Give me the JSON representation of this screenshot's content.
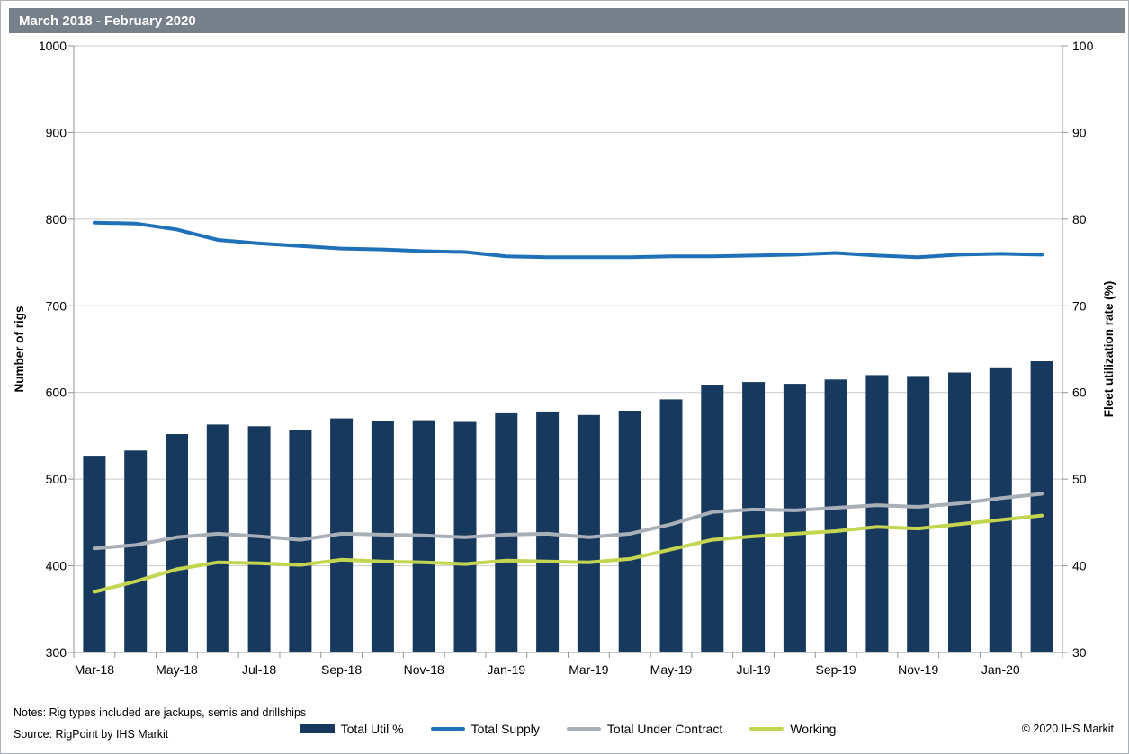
{
  "title": "March 2018 - February 2020",
  "notes": "Notes: Rig types included are jackups, semis and drillships",
  "source": "Source: RigPoint by IHS Markit",
  "copyright": "© 2020 IHS Markit",
  "colors": {
    "title_bar_bg": "#75808B",
    "bar": "#17395D",
    "total_supply": "#1E71B8",
    "under_contract": "#A9AFB8",
    "working": "#C3D551",
    "gridline": "#C9CACB",
    "axis_line": "#8E9499",
    "text": "#000000"
  },
  "chart_data": {
    "type": "bar",
    "subtype": "combo-bar-line-dual-axis",
    "title": "March 2018 - February 2020",
    "grid": "horizontal-on",
    "legend_position": "bottom",
    "categories": [
      "Mar-18",
      "Apr-18",
      "May-18",
      "Jun-18",
      "Jul-18",
      "Aug-18",
      "Sep-18",
      "Oct-18",
      "Nov-18",
      "Dec-18",
      "Jan-19",
      "Feb-19",
      "Mar-19",
      "Apr-19",
      "May-19",
      "Jun-19",
      "Jul-19",
      "Aug-19",
      "Sep-19",
      "Oct-19",
      "Nov-19",
      "Dec-19",
      "Jan-20",
      "Feb-20"
    ],
    "x_tick_labels": [
      "Mar-18",
      "May-18",
      "Jul-18",
      "Sep-18",
      "Nov-18",
      "Jan-19",
      "Mar-19",
      "May-19",
      "Jul-19",
      "Sep-19",
      "Nov-19",
      "Jan-20"
    ],
    "left_axis": {
      "label": "Number of rigs",
      "min": 300,
      "max": 1000,
      "step": 100,
      "ticks": [
        300,
        400,
        500,
        600,
        700,
        800,
        900,
        1000
      ]
    },
    "right_axis": {
      "label": "Fleet utilization rate (%)",
      "min": 30,
      "max": 100,
      "step": 10,
      "ticks": [
        30,
        40,
        50,
        60,
        70,
        80,
        90,
        100
      ]
    },
    "series": [
      {
        "name": "Total Util %",
        "type": "bar",
        "axis": "right",
        "color": "#17395D",
        "values": [
          52.7,
          53.3,
          55.2,
          56.3,
          56.1,
          55.7,
          57.0,
          56.7,
          56.8,
          56.6,
          57.6,
          57.8,
          57.4,
          57.9,
          59.2,
          60.9,
          61.2,
          61.0,
          61.5,
          62.0,
          61.9,
          62.3,
          62.9,
          63.6
        ]
      },
      {
        "name": "Total Supply",
        "type": "line",
        "axis": "left",
        "color": "#1E71B8",
        "values": [
          796,
          795,
          788,
          776,
          772,
          769,
          766,
          765,
          763,
          762,
          757,
          756,
          756,
          756,
          757,
          757,
          758,
          759,
          761,
          758,
          756,
          759,
          760,
          759
        ]
      },
      {
        "name": "Total Under Contract",
        "type": "line",
        "axis": "left",
        "color": "#A9AFB8",
        "values": [
          420,
          424,
          433,
          437,
          434,
          430,
          437,
          436,
          435,
          433,
          436,
          437,
          433,
          437,
          448,
          462,
          465,
          464,
          467,
          470,
          468,
          472,
          478,
          483
        ]
      },
      {
        "name": "Working",
        "type": "line",
        "axis": "left",
        "color": "#C3D551",
        "values": [
          370,
          382,
          396,
          404,
          403,
          401,
          407,
          405,
          404,
          402,
          406,
          405,
          404,
          408,
          419,
          430,
          434,
          437,
          440,
          445,
          443,
          448,
          453,
          458
        ]
      }
    ]
  }
}
